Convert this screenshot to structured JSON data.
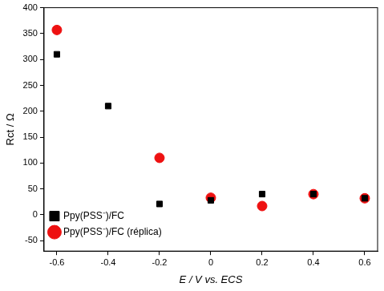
{
  "chart_data": {
    "type": "scatter",
    "x_label": "E / V vs. ECS",
    "y_label": "Rct / Ω",
    "series": [
      {
        "name": "Ppy(PSS⁻)/FC",
        "color": "#000000",
        "marker": "square",
        "x": [
          -0.6,
          -0.4,
          -0.2,
          0.0,
          0.2,
          0.4,
          0.6
        ],
        "values": [
          310,
          210,
          21,
          28,
          40,
          40,
          32
        ]
      },
      {
        "name": "Ppy(PSS⁻)/FC (réplica)",
        "color": "#ee1111",
        "marker": "circle",
        "x": [
          -0.6,
          -0.2,
          0.0,
          0.2,
          0.4,
          0.6
        ],
        "values": [
          357,
          110,
          33,
          17,
          40,
          32
        ]
      }
    ],
    "xlim": [
      -0.65,
      0.65
    ],
    "xticks": [
      -0.6,
      -0.4,
      -0.2,
      0.0,
      0.2,
      0.4,
      0.6
    ],
    "ylim": [
      -70,
      400
    ],
    "yticks": [
      -50,
      0,
      50,
      100,
      150,
      200,
      250,
      300,
      350,
      400
    ],
    "grid": false,
    "legend": "upper right"
  }
}
